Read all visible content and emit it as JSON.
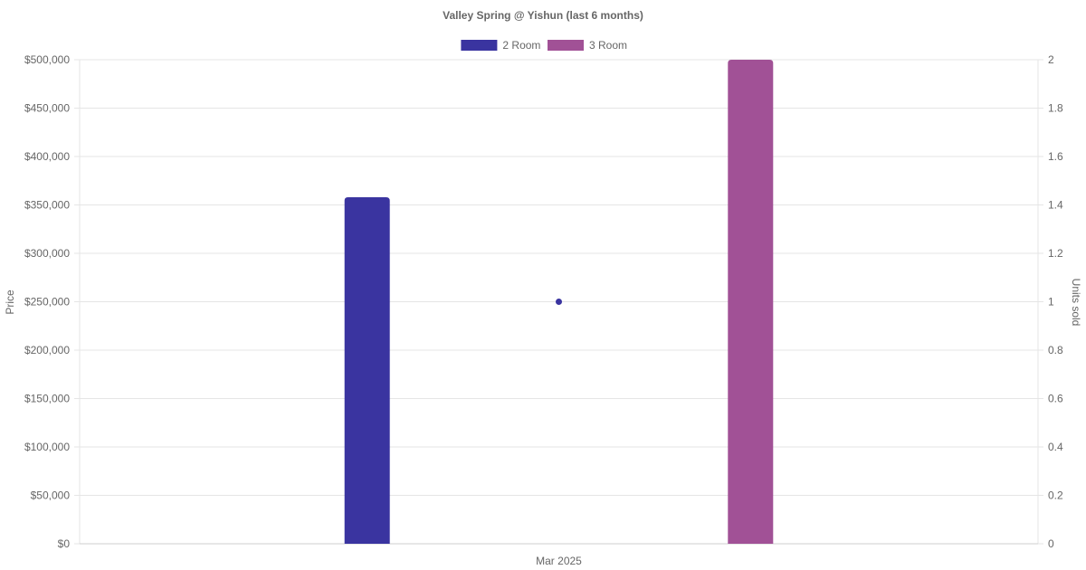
{
  "chart_data": {
    "type": "bar",
    "title": "Valley Spring @ Yishun (last 6 months)",
    "categories": [
      "Mar 2025"
    ],
    "series": [
      {
        "name": "2 Room",
        "type": "bar",
        "axis": "left",
        "values": [
          358000
        ],
        "color": "#3a34a0"
      },
      {
        "name": "3 Room",
        "type": "bar",
        "axis": "left",
        "values": [
          500000
        ],
        "color": "#a15196"
      },
      {
        "name": "",
        "type": "point",
        "axis": "right",
        "values": [
          1
        ],
        "color": "#3a34a0"
      }
    ],
    "ylabel": "Price",
    "y2label": "Units sold",
    "ylim": [
      0,
      500000
    ],
    "y2lim": [
      0,
      2
    ],
    "yticks": [
      "$0",
      "$50,000",
      "$100,000",
      "$150,000",
      "$200,000",
      "$250,000",
      "$300,000",
      "$350,000",
      "$400,000",
      "$450,000",
      "$500,000"
    ],
    "y2ticks": [
      "0",
      "0.2",
      "0.4",
      "0.6",
      "0.8",
      "1",
      "1.2",
      "1.4",
      "1.6",
      "1.8",
      "2"
    ],
    "grid": true,
    "legend": "top-center"
  }
}
